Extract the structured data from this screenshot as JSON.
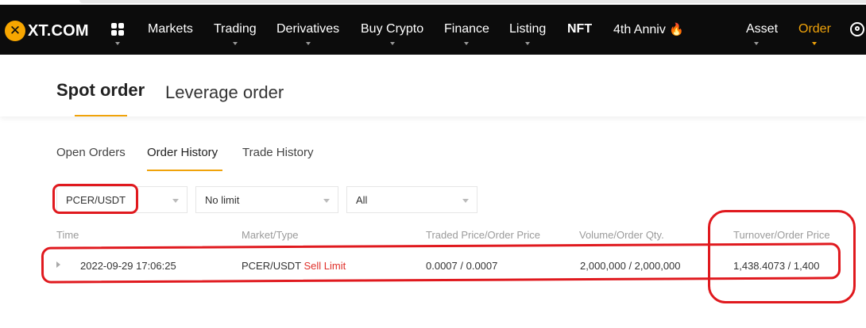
{
  "brand": {
    "logo_mark": "✕",
    "logo_text": "XT.COM",
    "accent_color": "#f0a30a",
    "sell_color": "#e0302a",
    "annotation_color": "#e0191e"
  },
  "nav": {
    "apps_icon": "apps-grid-icon",
    "items": [
      {
        "label": "Markets"
      },
      {
        "label": "Trading"
      },
      {
        "label": "Derivatives"
      },
      {
        "label": "Buy Crypto"
      },
      {
        "label": "Finance"
      },
      {
        "label": "Listing"
      },
      {
        "label": "NFT"
      },
      {
        "label": "4th Anniv",
        "icon": "fire-icon",
        "icon_glyph": "🔥"
      }
    ],
    "right_items": [
      {
        "label": "Asset"
      },
      {
        "label": "Order"
      }
    ],
    "user_icon": "user-icon"
  },
  "order_tabs": [
    {
      "label": "Spot order"
    },
    {
      "label": "Leverage order"
    }
  ],
  "sub_tabs": [
    {
      "label": "Open Orders"
    },
    {
      "label": "Order History"
    },
    {
      "label": "Trade History"
    }
  ],
  "filters": {
    "pair": {
      "value": "PCER/USDT"
    },
    "limit": {
      "value": "No limit"
    },
    "type": {
      "value": "All"
    }
  },
  "table": {
    "columns": [
      "Time",
      "Market/Type",
      "Traded Price/Order Price",
      "Volume/Order Qty.",
      "Turnover/Order Price"
    ],
    "rows": [
      {
        "time": "2022-09-29 17:06:25",
        "market": "PCER/USDT",
        "type": "Sell Limit",
        "price": "0.0007 / 0.0007",
        "volume": "2,000,000 / 2,000,000",
        "turnover": "1,438.4073 / 1,400"
      }
    ]
  }
}
